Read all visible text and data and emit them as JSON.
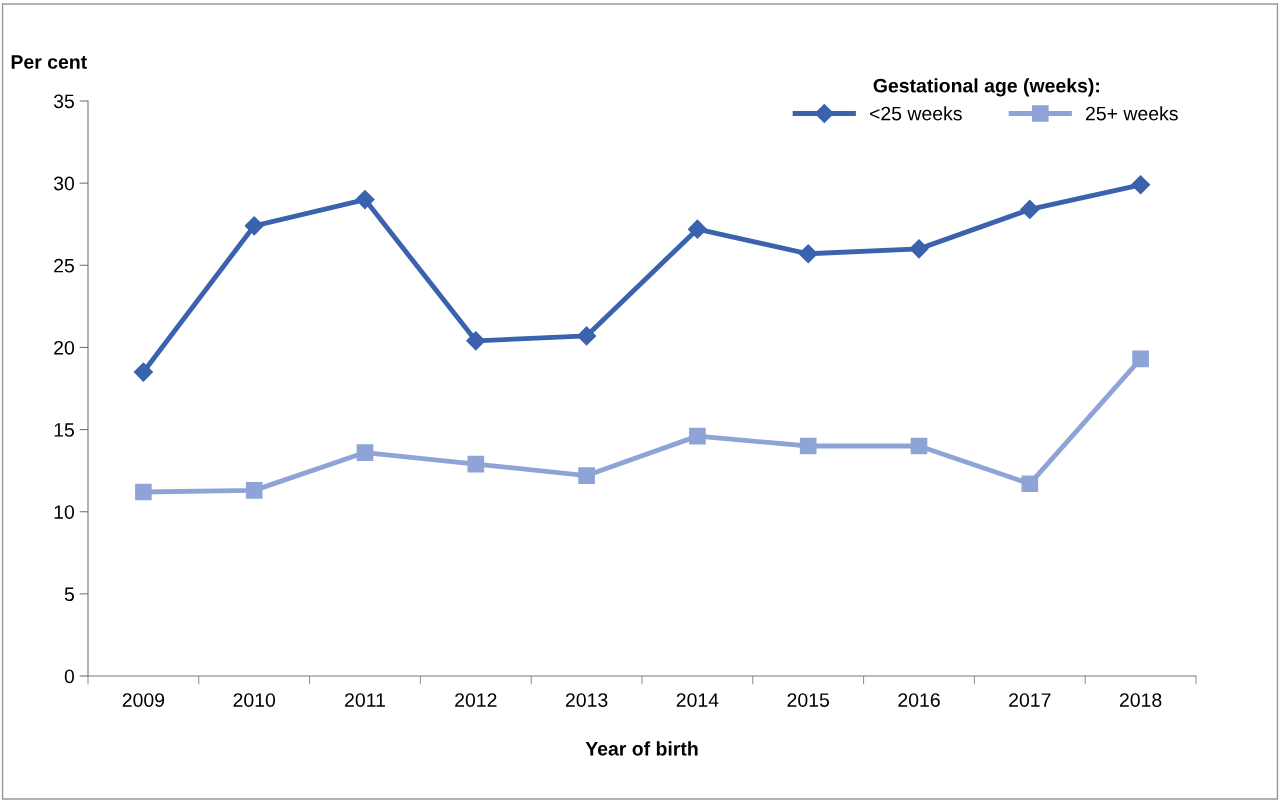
{
  "chart_data": {
    "type": "line",
    "ylabel": "Per cent",
    "xlabel": "Year of birth",
    "legend_title": "Gestational age (weeks):",
    "categories": [
      "2009",
      "2010",
      "2011",
      "2012",
      "2013",
      "2014",
      "2015",
      "2016",
      "2017",
      "2018"
    ],
    "series": [
      {
        "name": "<25 weeks",
        "color": "#3a62ad",
        "marker": "diamond",
        "values": [
          18.5,
          27.4,
          29.0,
          20.4,
          20.7,
          27.2,
          25.7,
          26.0,
          28.4,
          29.9
        ]
      },
      {
        "name": "25+ weeks",
        "color": "#8fa4d6",
        "marker": "square",
        "values": [
          11.2,
          11.3,
          13.6,
          12.9,
          12.2,
          14.6,
          14.0,
          14.0,
          11.7,
          19.3
        ]
      }
    ],
    "ylim": [
      0,
      35
    ],
    "yticks": [
      0,
      5,
      10,
      15,
      20,
      25,
      30,
      35
    ],
    "grid": false,
    "legend": "top right",
    "line_style": "solid"
  }
}
